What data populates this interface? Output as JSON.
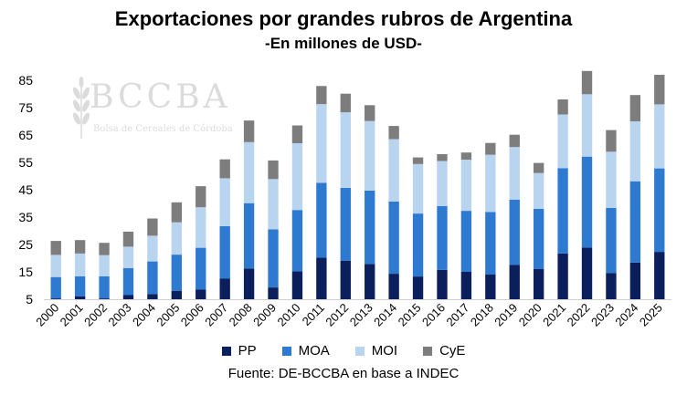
{
  "chart_data": {
    "type": "bar",
    "stacked": true,
    "title": "Exportaciones por grandes rubros de Argentina",
    "subtitle": "-En millones de USD-",
    "xlabel": "",
    "ylabel": "",
    "ylim": [
      5,
      85
    ],
    "yticks": [
      5,
      15,
      25,
      35,
      45,
      55,
      65,
      75,
      85
    ],
    "grid": false,
    "legend_position": "bottom",
    "categories": [
      "2000",
      "2001",
      "2002",
      "2003",
      "2004",
      "2005",
      "2006",
      "2007",
      "2008",
      "2009",
      "2010",
      "2011",
      "2012",
      "2013",
      "2014",
      "2015",
      "2016",
      "2017",
      "2018",
      "2019",
      "2020",
      "2021",
      "2022",
      "2023",
      "2024",
      "2025"
    ],
    "series": [
      {
        "name": "PP",
        "color": "#0b1f5c",
        "values": [
          5.3,
          6.1,
          5.3,
          6.5,
          6.9,
          8.1,
          8.6,
          12.5,
          16.2,
          9.3,
          15.2,
          20.2,
          19.1,
          17.9,
          14.3,
          13.3,
          15.7,
          15.0,
          14.0,
          17.6,
          16.0,
          21.7,
          23.9,
          14.6,
          18.4,
          22.3
        ]
      },
      {
        "name": "MOA",
        "color": "#2e7ad1",
        "values": [
          7.8,
          7.3,
          8.1,
          9.9,
          11.9,
          13.2,
          15.2,
          19.2,
          23.9,
          21.2,
          22.4,
          27.3,
          26.6,
          26.8,
          26.4,
          23.0,
          23.3,
          22.3,
          22.9,
          23.8,
          22.0,
          31.2,
          33.2,
          23.8,
          29.7,
          30.5
        ]
      },
      {
        "name": "MOI",
        "color": "#b9d4ee",
        "values": [
          8.1,
          8.3,
          7.7,
          7.8,
          9.4,
          11.8,
          14.8,
          17.5,
          22.3,
          18.4,
          24.4,
          28.8,
          27.6,
          25.4,
          22.8,
          18.1,
          16.5,
          18.7,
          20.9,
          19.2,
          13.1,
          19.6,
          22.8,
          20.5,
          21.9,
          23.4
        ]
      },
      {
        "name": "CyE",
        "color": "#7d7d7d",
        "values": [
          5.1,
          4.9,
          4.5,
          5.5,
          6.3,
          7.3,
          7.7,
          6.9,
          7.9,
          6.8,
          6.5,
          6.6,
          6.8,
          5.8,
          4.8,
          2.4,
          2.5,
          2.6,
          4.3,
          4.5,
          3.7,
          5.5,
          8.5,
          7.9,
          9.6,
          10.8
        ]
      }
    ],
    "source": "Fuente: DE-BCCBA en base a INDEC"
  },
  "watermark": {
    "name": "BCCBA",
    "sub": "Bolsa de Cereales de Córdoba"
  }
}
